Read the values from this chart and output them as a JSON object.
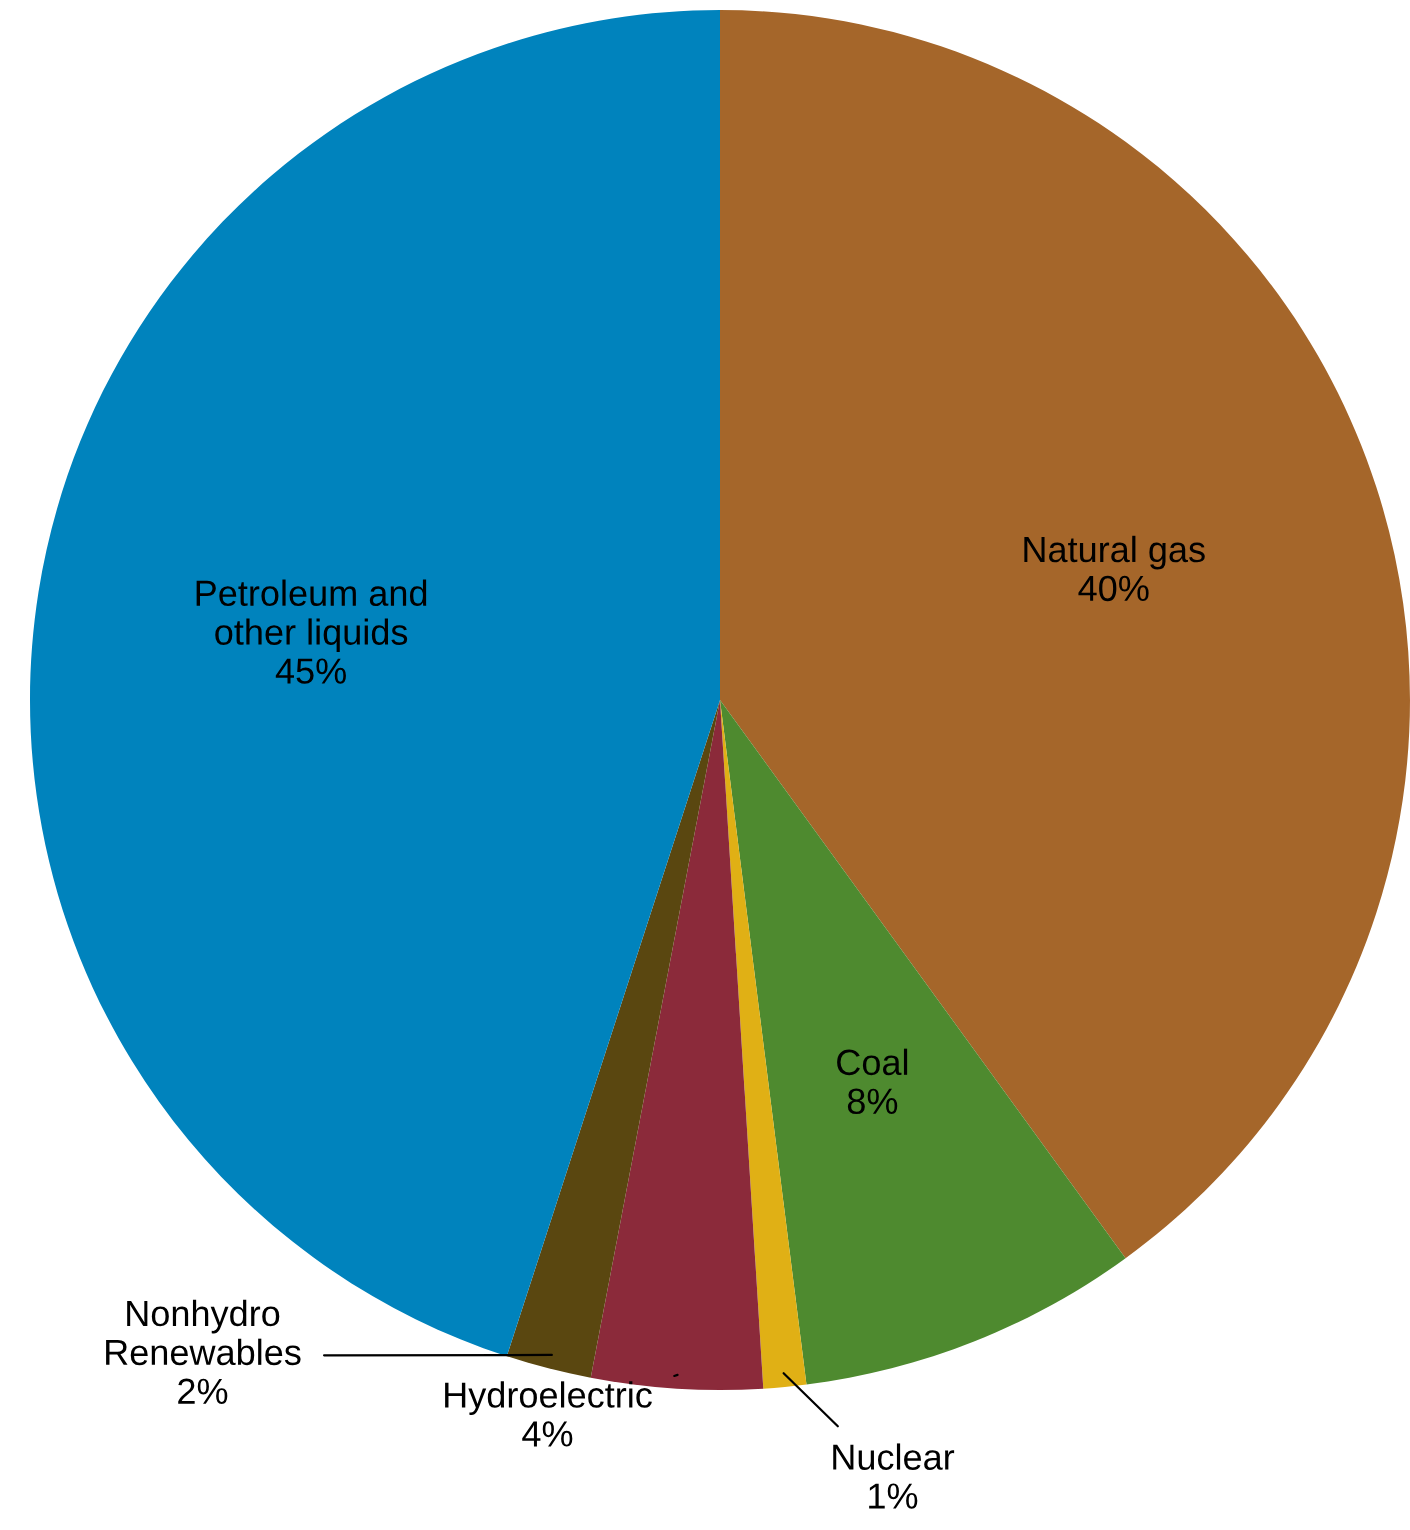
{
  "chart_data": {
    "type": "pie",
    "categories": [
      "Natural gas",
      "Coal",
      "Nuclear",
      "Hydroelectric",
      "Nonhydro Renewables",
      "Petroleum and other liquids"
    ],
    "values": [
      40,
      8,
      1,
      4,
      2,
      45
    ],
    "value_labels": [
      "40%",
      "8%",
      "1%",
      "4%",
      "2%",
      "45%"
    ],
    "colors": [
      "#a5662a",
      "#4e8a2f",
      "#e0b015",
      "#8b2a3a",
      "#5a4710",
      "#0083bd"
    ]
  }
}
